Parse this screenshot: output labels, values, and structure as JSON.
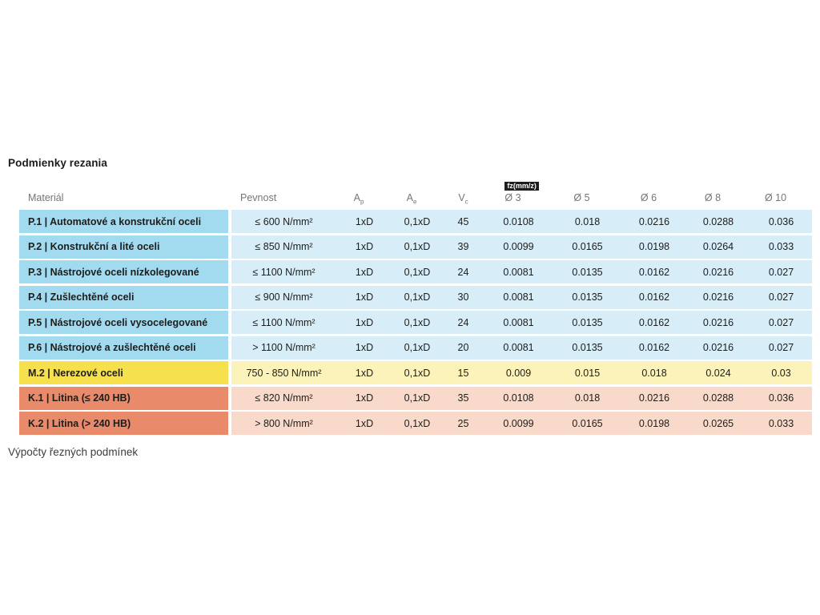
{
  "title": "Podmienky rezania",
  "footer_text": "Výpočty řezných podmínek",
  "table": {
    "headers": {
      "material": "Materiál",
      "pevnost": "Pevnost",
      "ap": {
        "base": "A",
        "sub": "p"
      },
      "ae": {
        "base": "A",
        "sub": "e"
      },
      "vc": {
        "base": "V",
        "sub": "c"
      },
      "fz_badge": "fz(mm/z)",
      "diameters": [
        "Ø 3",
        "Ø 5",
        "Ø 6",
        "Ø 8",
        "Ø 10"
      ]
    },
    "rows": [
      {
        "group": "p",
        "material": "P.1 | Automatové a konstrukční oceli",
        "pevnost": "≤ 600 N/mm²",
        "ap": "1xD",
        "ae": "0,1xD",
        "vc": "45",
        "fz": [
          "0.0108",
          "0.018",
          "0.0216",
          "0.0288",
          "0.036"
        ]
      },
      {
        "group": "p",
        "material": "P.2 | Konstrukční a lité oceli",
        "pevnost": "≤ 850 N/mm²",
        "ap": "1xD",
        "ae": "0,1xD",
        "vc": "39",
        "fz": [
          "0.0099",
          "0.0165",
          "0.0198",
          "0.0264",
          "0.033"
        ]
      },
      {
        "group": "p",
        "material": "P.3 | Nástrojové oceli nízkolegované",
        "pevnost": "≤ 1100 N/mm²",
        "ap": "1xD",
        "ae": "0,1xD",
        "vc": "24",
        "fz": [
          "0.0081",
          "0.0135",
          "0.0162",
          "0.0216",
          "0.027"
        ]
      },
      {
        "group": "p",
        "material": "P.4 | Zušlechtěné oceli",
        "pevnost": "≤ 900 N/mm²",
        "ap": "1xD",
        "ae": "0,1xD",
        "vc": "30",
        "fz": [
          "0.0081",
          "0.0135",
          "0.0162",
          "0.0216",
          "0.027"
        ]
      },
      {
        "group": "p",
        "material": "P.5 | Nástrojové oceli vysocelegované",
        "pevnost": "≤ 1100 N/mm²",
        "ap": "1xD",
        "ae": "0,1xD",
        "vc": "24",
        "fz": [
          "0.0081",
          "0.0135",
          "0.0162",
          "0.0216",
          "0.027"
        ]
      },
      {
        "group": "p",
        "material": "P.6 | Nástrojové a zušlechtěné oceli",
        "pevnost": "> 1100 N/mm²",
        "ap": "1xD",
        "ae": "0,1xD",
        "vc": "20",
        "fz": [
          "0.0081",
          "0.0135",
          "0.0162",
          "0.0216",
          "0.027"
        ]
      },
      {
        "group": "m",
        "material": "M.2 | Nerezové oceli",
        "pevnost": "750 - 850 N/mm²",
        "ap": "1xD",
        "ae": "0,1xD",
        "vc": "15",
        "fz": [
          "0.009",
          "0.015",
          "0.018",
          "0.024",
          "0.03"
        ]
      },
      {
        "group": "k",
        "material": "K.1 | Litina (≤ 240 HB)",
        "pevnost": "≤ 820 N/mm²",
        "ap": "1xD",
        "ae": "0,1xD",
        "vc": "35",
        "fz": [
          "0.0108",
          "0.018",
          "0.0216",
          "0.0288",
          "0.036"
        ]
      },
      {
        "group": "k",
        "material": "K.2 | Litina (> 240 HB)",
        "pevnost": "> 800 N/mm²",
        "ap": "1xD",
        "ae": "0,1xD",
        "vc": "25",
        "fz": [
          "0.0099",
          "0.0165",
          "0.0198",
          "0.0265",
          "0.033"
        ]
      }
    ]
  },
  "colors": {
    "steel_label_bg": "#a2daf0",
    "steel_band_bg": "#d7eef9",
    "stainless_label_bg": "#f6e04d",
    "stainless_band_bg": "#fbf3ba",
    "castiron_label_bg": "#e98a6b",
    "castiron_band_bg": "#f9d9ca",
    "badge_bg": "#1d1d1b",
    "badge_text": "#ffffff",
    "header_text": "#757575",
    "body_text": "#1d1d1b"
  }
}
